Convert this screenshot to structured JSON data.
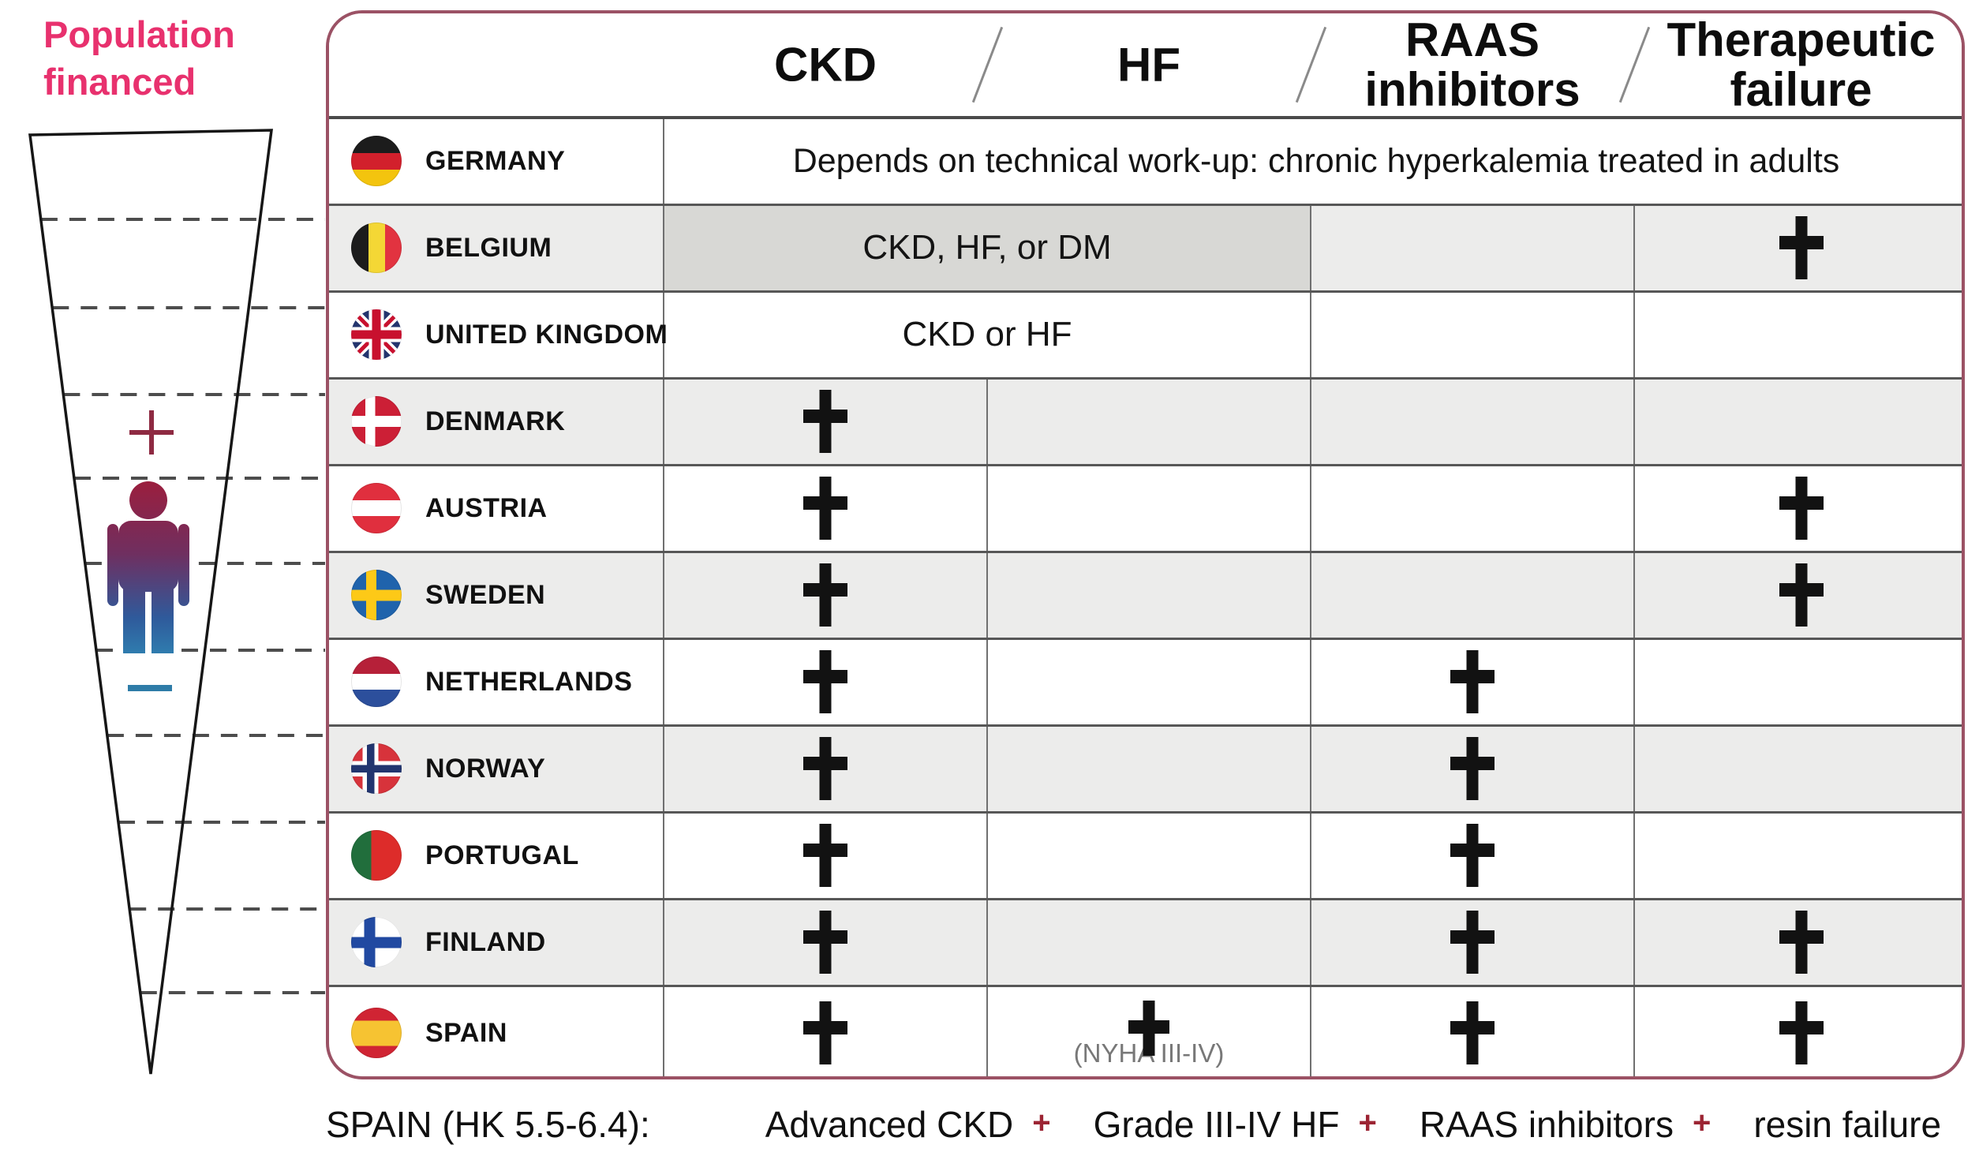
{
  "funnel": {
    "title_line1": "Population",
    "title_line2": "financed",
    "title_color": "#e8316e",
    "plus_symbol": "+",
    "minus_symbol": "−",
    "plus_color": "#8e2a42",
    "minus_color": "#2e7ca8"
  },
  "table": {
    "border_color": "#9b5265",
    "header": {
      "columns": [
        "CKD",
        "HF",
        "RAAS inhibitors",
        "Therapeutic failure"
      ],
      "separator": "/"
    },
    "rows": [
      {
        "country": "GERMANY",
        "flag": "germany",
        "type": "span-all",
        "text": "Depends on technical work-up: chronic hyperkalemia treated in adults"
      },
      {
        "country": "BELGIUM",
        "flag": "belgium",
        "type": "span-2",
        "shaded": true,
        "text": "CKD, HF, or DM",
        "cells": [
          "",
          "plus"
        ]
      },
      {
        "country": "UNITED KINGDOM",
        "flag": "uk",
        "type": "span-2",
        "shaded": false,
        "text": "CKD or HF",
        "cells": [
          "",
          ""
        ]
      },
      {
        "country": "DENMARK",
        "flag": "denmark",
        "cells": [
          "plus",
          "",
          "",
          ""
        ]
      },
      {
        "country": "AUSTRIA",
        "flag": "austria",
        "cells": [
          "plus",
          "",
          "",
          "plus"
        ]
      },
      {
        "country": "SWEDEN",
        "flag": "sweden",
        "cells": [
          "plus",
          "",
          "",
          "plus"
        ]
      },
      {
        "country": "NETHERLANDS",
        "flag": "netherlands",
        "cells": [
          "plus",
          "",
          "plus",
          ""
        ]
      },
      {
        "country": "NORWAY",
        "flag": "norway",
        "cells": [
          "plus",
          "",
          "plus",
          ""
        ]
      },
      {
        "country": "PORTUGAL",
        "flag": "portugal",
        "cells": [
          "plus",
          "",
          "plus",
          ""
        ]
      },
      {
        "country": "FINLAND",
        "flag": "finland",
        "cells": [
          "plus",
          "",
          "plus",
          "plus"
        ]
      },
      {
        "country": "SPAIN",
        "flag": "spain",
        "cells": [
          "plus",
          "plus-note",
          "plus",
          "plus"
        ],
        "note": "(NYHA III-IV)"
      }
    ]
  },
  "footnote": {
    "label": "SPAIN (HK 5.5-6.4):",
    "plus_color": "#9c2433",
    "items": [
      {
        "text": "Advanced CKD",
        "plus": "+"
      },
      {
        "text": "Grade III-IV HF",
        "plus": "+"
      },
      {
        "text": "RAAS inhibitors",
        "plus": "+"
      },
      {
        "text": "resin failure",
        "plus": ""
      }
    ]
  }
}
